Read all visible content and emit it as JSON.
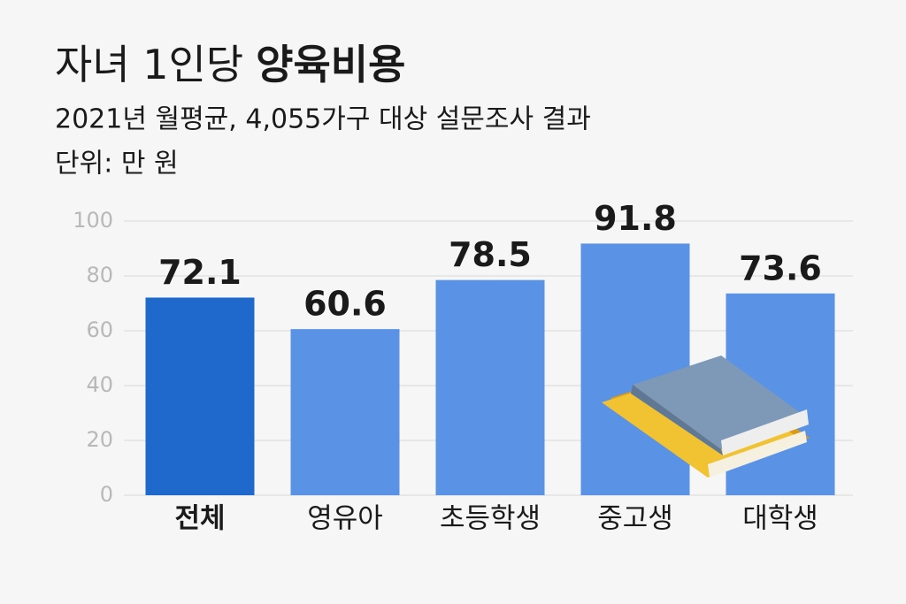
{
  "chart_data": {
    "type": "bar",
    "title": [
      "자녀 1인당",
      "양육비용"
    ],
    "subtitle": "2021년 월평균, 4,055가구 대상 설문조사 결과",
    "y_label": "단위: 만 원",
    "categories": [
      "전체",
      "영유아",
      "초등학생",
      "중고생",
      "대학생"
    ],
    "values": [
      72.1,
      60.6,
      78.5,
      91.8,
      73.6
    ],
    "colors": [
      "#1f68cc",
      "#5a92e6",
      "#5a92e6",
      "#5a92e6",
      "#5a92e6"
    ],
    "ylim": [
      0,
      100
    ],
    "yticks": [
      0,
      20,
      40,
      60,
      80,
      100
    ],
    "grid": true
  }
}
